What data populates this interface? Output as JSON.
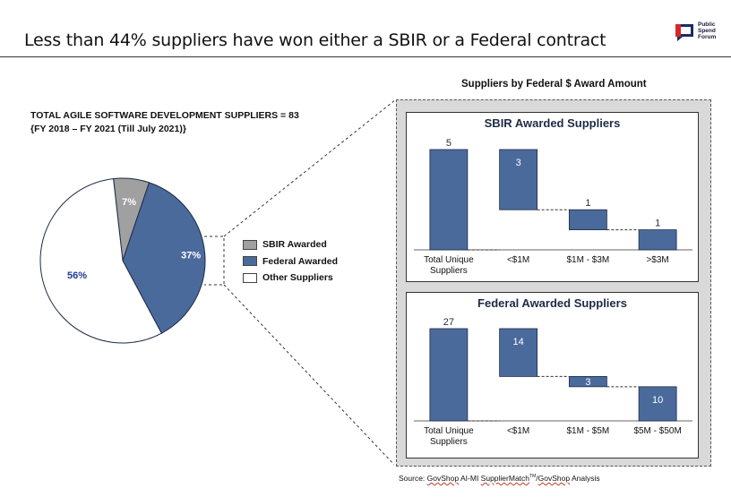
{
  "slide": {
    "title": "Less than 44% suppliers have won either a SBIR or a Federal contract"
  },
  "logo": {
    "icon": "public-spend-forum-logo",
    "text": "Public\nSpend\nForum"
  },
  "pie_section": {
    "heading_line1": "TOTAL AGILE SOFTWARE DEVELOPMENT SUPPLIERS = 83",
    "heading_line2": "{FY 2018 – FY 2021 (Till July 2021)}"
  },
  "right_section": {
    "heading": "Suppliers by Federal $ Award Amount"
  },
  "source": {
    "prefix": "Source:  ",
    "part1": "GovShop",
    "part2": " AI-MI ",
    "part3": "SupplierMatch",
    "tm": "TM",
    "part4": "/",
    "part5": "GovShop",
    "part6": " Analysis"
  },
  "colors": {
    "blue": "#4a6a9c",
    "gray": "#a0a0a0",
    "white": "#ffffff",
    "text_blue": "#1f3a93"
  },
  "chart_data": [
    {
      "type": "pie",
      "slices": [
        {
          "label": "SBIR Awarded",
          "value": 7,
          "display": "7%",
          "color": "#a0a0a0"
        },
        {
          "label": "Federal Awarded",
          "value": 37,
          "display": "37%",
          "color": "#4a6a9c"
        },
        {
          "label": "Other Suppliers",
          "value": 56,
          "display": "56%",
          "color": "#ffffff"
        }
      ],
      "legend_position": "right"
    },
    {
      "type": "bar",
      "subtype": "waterfall",
      "title": "SBIR Awarded Suppliers",
      "categories": [
        "Total Unique\nSuppliers",
        "<$1M",
        "$1M - $3M",
        ">$3M"
      ],
      "values": [
        5,
        3,
        1,
        1
      ],
      "labels": [
        "5",
        "3",
        "1",
        "1"
      ],
      "ylim": [
        0,
        5
      ]
    },
    {
      "type": "bar",
      "subtype": "waterfall",
      "title": "Federal Awarded Suppliers",
      "categories": [
        "Total Unique\nSuppliers",
        "<$1M",
        "$1M - $5M",
        "$5M - $50M"
      ],
      "values": [
        27,
        14,
        3,
        10
      ],
      "labels": [
        "27",
        "14",
        "3",
        "10"
      ],
      "ylim": [
        0,
        27
      ]
    }
  ]
}
